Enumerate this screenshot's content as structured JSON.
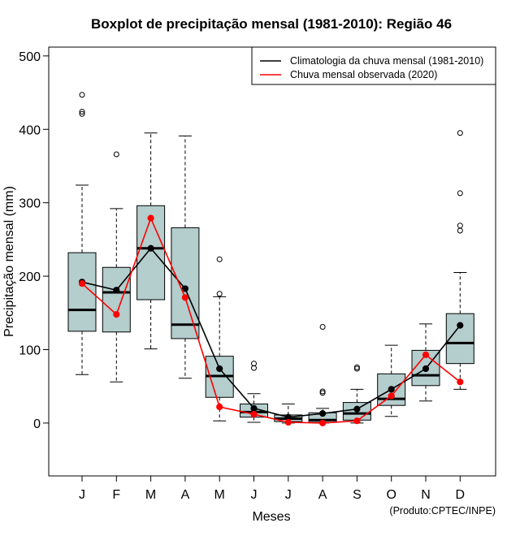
{
  "chart_data": {
    "type": "boxplot",
    "title": "Boxplot de precipitação mensal (1981-2010): Região 46",
    "xlabel": "Meses",
    "ylabel": "Precipitação mensal (mm)",
    "ylim": [
      -72,
      512
    ],
    "yticks": [
      0,
      100,
      200,
      300,
      400,
      500
    ],
    "categories": [
      "J",
      "F",
      "M",
      "A",
      "M",
      "J",
      "J",
      "A",
      "S",
      "O",
      "N",
      "D"
    ],
    "boxes": [
      {
        "whisker_low": 66,
        "q1": 125,
        "median": 154,
        "q3": 232,
        "whisker_high": 324,
        "outliers": [
          421,
          424,
          447
        ]
      },
      {
        "whisker_low": 56,
        "q1": 124,
        "median": 178,
        "q3": 212,
        "whisker_high": 292,
        "outliers": [
          366
        ]
      },
      {
        "whisker_low": 101,
        "q1": 168,
        "median": 238,
        "q3": 296,
        "whisker_high": 395,
        "outliers": []
      },
      {
        "whisker_low": 61,
        "q1": 115,
        "median": 134,
        "q3": 266,
        "whisker_high": 391,
        "outliers": []
      },
      {
        "whisker_low": 3,
        "q1": 35,
        "median": 64,
        "q3": 91,
        "whisker_high": 172,
        "outliers": [
          176,
          223
        ]
      },
      {
        "whisker_low": 1,
        "q1": 8,
        "median": 15,
        "q3": 26,
        "whisker_high": 40,
        "outliers": [
          75,
          81
        ]
      },
      {
        "whisker_low": 0,
        "q1": 2,
        "median": 6,
        "q3": 11,
        "whisker_high": 26,
        "outliers": []
      },
      {
        "whisker_low": 0,
        "q1": 1,
        "median": 4,
        "q3": 14,
        "whisker_high": 20,
        "outliers": [
          41,
          43,
          131
        ]
      },
      {
        "whisker_low": 0,
        "q1": 4,
        "median": 13,
        "q3": 28,
        "whisker_high": 46,
        "outliers": [
          74,
          76
        ]
      },
      {
        "whisker_low": 9,
        "q1": 24,
        "median": 33,
        "q3": 67,
        "whisker_high": 106,
        "outliers": []
      },
      {
        "whisker_low": 30,
        "q1": 51,
        "median": 65,
        "q3": 99,
        "whisker_high": 135,
        "outliers": []
      },
      {
        "whisker_low": 46,
        "q1": 81,
        "median": 109,
        "q3": 149,
        "whisker_high": 205,
        "outliers": [
          262,
          269,
          313,
          395
        ]
      }
    ],
    "series": [
      {
        "name": "Climatologia da chuva mensal (1981-2010)",
        "color": "#000000",
        "values": [
          192,
          181,
          238,
          183,
          74,
          20,
          8,
          13,
          19,
          46,
          74,
          133
        ]
      },
      {
        "name": "Chuva mensal observada (2020)",
        "color": "#ff0000",
        "values": [
          190,
          148,
          279,
          171,
          22,
          12,
          1,
          0,
          3,
          37,
          93,
          56
        ]
      }
    ],
    "box_color": "#b4cdcd",
    "legend_position": "top-right",
    "credit": "(Produto:CPTEC/INPE)"
  }
}
